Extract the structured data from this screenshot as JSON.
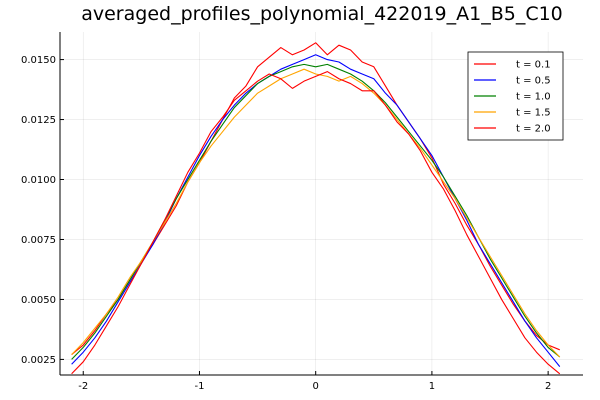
{
  "chart_data": {
    "type": "line",
    "title": "averaged_profiles_polynomial_422019_A1_B5_C10",
    "xlabel": "",
    "ylabel": "",
    "xlim": [
      -2.2,
      2.3
    ],
    "ylim": [
      0.00185,
      0.01615
    ],
    "x_ticks": [
      -2,
      -1,
      0,
      1,
      2
    ],
    "x_tick_labels": [
      "-2",
      "-1",
      "0",
      "1",
      "2"
    ],
    "y_ticks": [
      0.0025,
      0.005,
      0.0075,
      0.01,
      0.0125,
      0.015
    ],
    "y_tick_labels": [
      "0.0025",
      "0.0050",
      "0.0075",
      "0.0100",
      "0.0125",
      "0.0150"
    ],
    "grid": true,
    "legend_position": "top-right",
    "series": [
      {
        "name": "t = 0.1",
        "color": "#ff0000",
        "x": [
          -2.1,
          -2.0,
          -1.9,
          -1.8,
          -1.7,
          -1.6,
          -1.5,
          -1.4,
          -1.3,
          -1.2,
          -1.1,
          -1.0,
          -0.9,
          -0.8,
          -0.7,
          -0.6,
          -0.5,
          -0.4,
          -0.3,
          -0.2,
          -0.1,
          0.0,
          0.1,
          0.2,
          0.3,
          0.4,
          0.5,
          0.6,
          0.7,
          0.8,
          0.9,
          1.0,
          1.1,
          1.2,
          1.3,
          1.4,
          1.5,
          1.6,
          1.7,
          1.8,
          1.9,
          2.0,
          2.1
        ],
        "y": [
          0.0027,
          0.0031,
          0.0037,
          0.0044,
          0.005,
          0.0058,
          0.0066,
          0.0073,
          0.0081,
          0.0089,
          0.0099,
          0.0107,
          0.0116,
          0.0125,
          0.0134,
          0.0139,
          0.0147,
          0.0151,
          0.0155,
          0.0152,
          0.0154,
          0.0157,
          0.0152,
          0.0156,
          0.0154,
          0.0149,
          0.0147,
          0.0139,
          0.0131,
          0.0124,
          0.0117,
          0.0109,
          0.0098,
          0.009,
          0.0081,
          0.0073,
          0.0064,
          0.0056,
          0.0048,
          0.0041,
          0.0035,
          0.0031,
          0.0029
        ]
      },
      {
        "name": "t = 0.5",
        "color": "#0000ff",
        "x": [
          -2.1,
          -2.0,
          -1.9,
          -1.8,
          -1.7,
          -1.6,
          -1.5,
          -1.4,
          -1.3,
          -1.2,
          -1.1,
          -1.0,
          -0.9,
          -0.8,
          -0.7,
          -0.6,
          -0.5,
          -0.4,
          -0.3,
          -0.2,
          -0.1,
          0.0,
          0.1,
          0.2,
          0.3,
          0.4,
          0.5,
          0.6,
          0.7,
          0.8,
          0.9,
          1.0,
          1.1,
          1.2,
          1.3,
          1.4,
          1.5,
          1.6,
          1.7,
          1.8,
          1.9,
          2.0,
          2.1
        ],
        "y": [
          0.0023,
          0.0028,
          0.0034,
          0.0041,
          0.0049,
          0.0057,
          0.0065,
          0.0073,
          0.0082,
          0.0092,
          0.0101,
          0.011,
          0.0118,
          0.0125,
          0.0131,
          0.0136,
          0.014,
          0.0143,
          0.0146,
          0.0148,
          0.015,
          0.0152,
          0.015,
          0.0149,
          0.0146,
          0.0144,
          0.0142,
          0.0136,
          0.0131,
          0.0124,
          0.0117,
          0.011,
          0.0101,
          0.0092,
          0.0083,
          0.0073,
          0.0065,
          0.0057,
          0.0049,
          0.0041,
          0.0034,
          0.0028,
          0.0022
        ]
      },
      {
        "name": "t = 1.0",
        "color": "#008000",
        "x": [
          -2.1,
          -2.0,
          -1.9,
          -1.8,
          -1.7,
          -1.6,
          -1.5,
          -1.4,
          -1.3,
          -1.2,
          -1.1,
          -1.0,
          -0.9,
          -0.8,
          -0.7,
          -0.6,
          -0.5,
          -0.4,
          -0.3,
          -0.2,
          -0.1,
          0.0,
          0.1,
          0.2,
          0.3,
          0.4,
          0.5,
          0.6,
          0.7,
          0.8,
          0.9,
          1.0,
          1.1,
          1.2,
          1.3,
          1.4,
          1.5,
          1.6,
          1.7,
          1.8,
          1.9,
          2.0,
          2.1
        ],
        "y": [
          0.0025,
          0.003,
          0.0036,
          0.0043,
          0.005,
          0.0058,
          0.0066,
          0.0074,
          0.0083,
          0.0092,
          0.01,
          0.0108,
          0.0116,
          0.0123,
          0.013,
          0.0135,
          0.014,
          0.0143,
          0.0145,
          0.0147,
          0.0148,
          0.0147,
          0.0148,
          0.0146,
          0.0144,
          0.0141,
          0.0137,
          0.0132,
          0.0126,
          0.012,
          0.0114,
          0.0108,
          0.0101,
          0.0093,
          0.0085,
          0.0076,
          0.0067,
          0.0059,
          0.0051,
          0.0043,
          0.0036,
          0.003,
          0.0026
        ]
      },
      {
        "name": "t = 1.5",
        "color": "#ffa500",
        "x": [
          -2.1,
          -2.0,
          -1.9,
          -1.8,
          -1.7,
          -1.6,
          -1.5,
          -1.4,
          -1.3,
          -1.2,
          -1.1,
          -1.0,
          -0.9,
          -0.8,
          -0.7,
          -0.6,
          -0.5,
          -0.4,
          -0.3,
          -0.2,
          -0.1,
          0.0,
          0.1,
          0.2,
          0.3,
          0.4,
          0.5,
          0.6,
          0.7,
          0.8,
          0.9,
          1.0,
          1.1,
          1.2,
          1.3,
          1.4,
          1.5,
          1.6,
          1.7,
          1.8,
          1.9,
          2.0,
          2.1
        ],
        "y": [
          0.0027,
          0.0032,
          0.0038,
          0.0044,
          0.0051,
          0.0059,
          0.0066,
          0.0074,
          0.0082,
          0.009,
          0.0099,
          0.0107,
          0.0114,
          0.012,
          0.0126,
          0.0131,
          0.0136,
          0.0139,
          0.0142,
          0.0144,
          0.0146,
          0.0144,
          0.0143,
          0.0141,
          0.0143,
          0.014,
          0.0136,
          0.0131,
          0.0125,
          0.0119,
          0.0113,
          0.0106,
          0.0099,
          0.0092,
          0.0084,
          0.0076,
          0.0068,
          0.006,
          0.0052,
          0.0044,
          0.0037,
          0.0031,
          0.0026
        ]
      },
      {
        "name": "t = 2.0",
        "color": "#ff0000",
        "x": [
          -2.1,
          -2.0,
          -1.9,
          -1.8,
          -1.7,
          -1.6,
          -1.5,
          -1.4,
          -1.3,
          -1.2,
          -1.1,
          -1.0,
          -0.9,
          -0.8,
          -0.7,
          -0.6,
          -0.5,
          -0.4,
          -0.3,
          -0.2,
          -0.1,
          0.0,
          0.1,
          0.2,
          0.3,
          0.4,
          0.5,
          0.6,
          0.7,
          0.8,
          0.9,
          1.0,
          1.1,
          1.2,
          1.3,
          1.4,
          1.5,
          1.6,
          1.7,
          1.8,
          1.9,
          2.0,
          2.1
        ],
        "y": [
          0.0019,
          0.0024,
          0.0031,
          0.0039,
          0.0047,
          0.0056,
          0.0065,
          0.0074,
          0.0083,
          0.0093,
          0.0103,
          0.0111,
          0.012,
          0.0126,
          0.0133,
          0.0137,
          0.0141,
          0.0144,
          0.0142,
          0.0138,
          0.0141,
          0.0143,
          0.0145,
          0.0142,
          0.014,
          0.0137,
          0.0137,
          0.0131,
          0.0124,
          0.0119,
          0.0112,
          0.0103,
          0.0096,
          0.0087,
          0.0077,
          0.0068,
          0.0059,
          0.005,
          0.0042,
          0.0034,
          0.0028,
          0.0023,
          0.0019
        ]
      }
    ]
  }
}
